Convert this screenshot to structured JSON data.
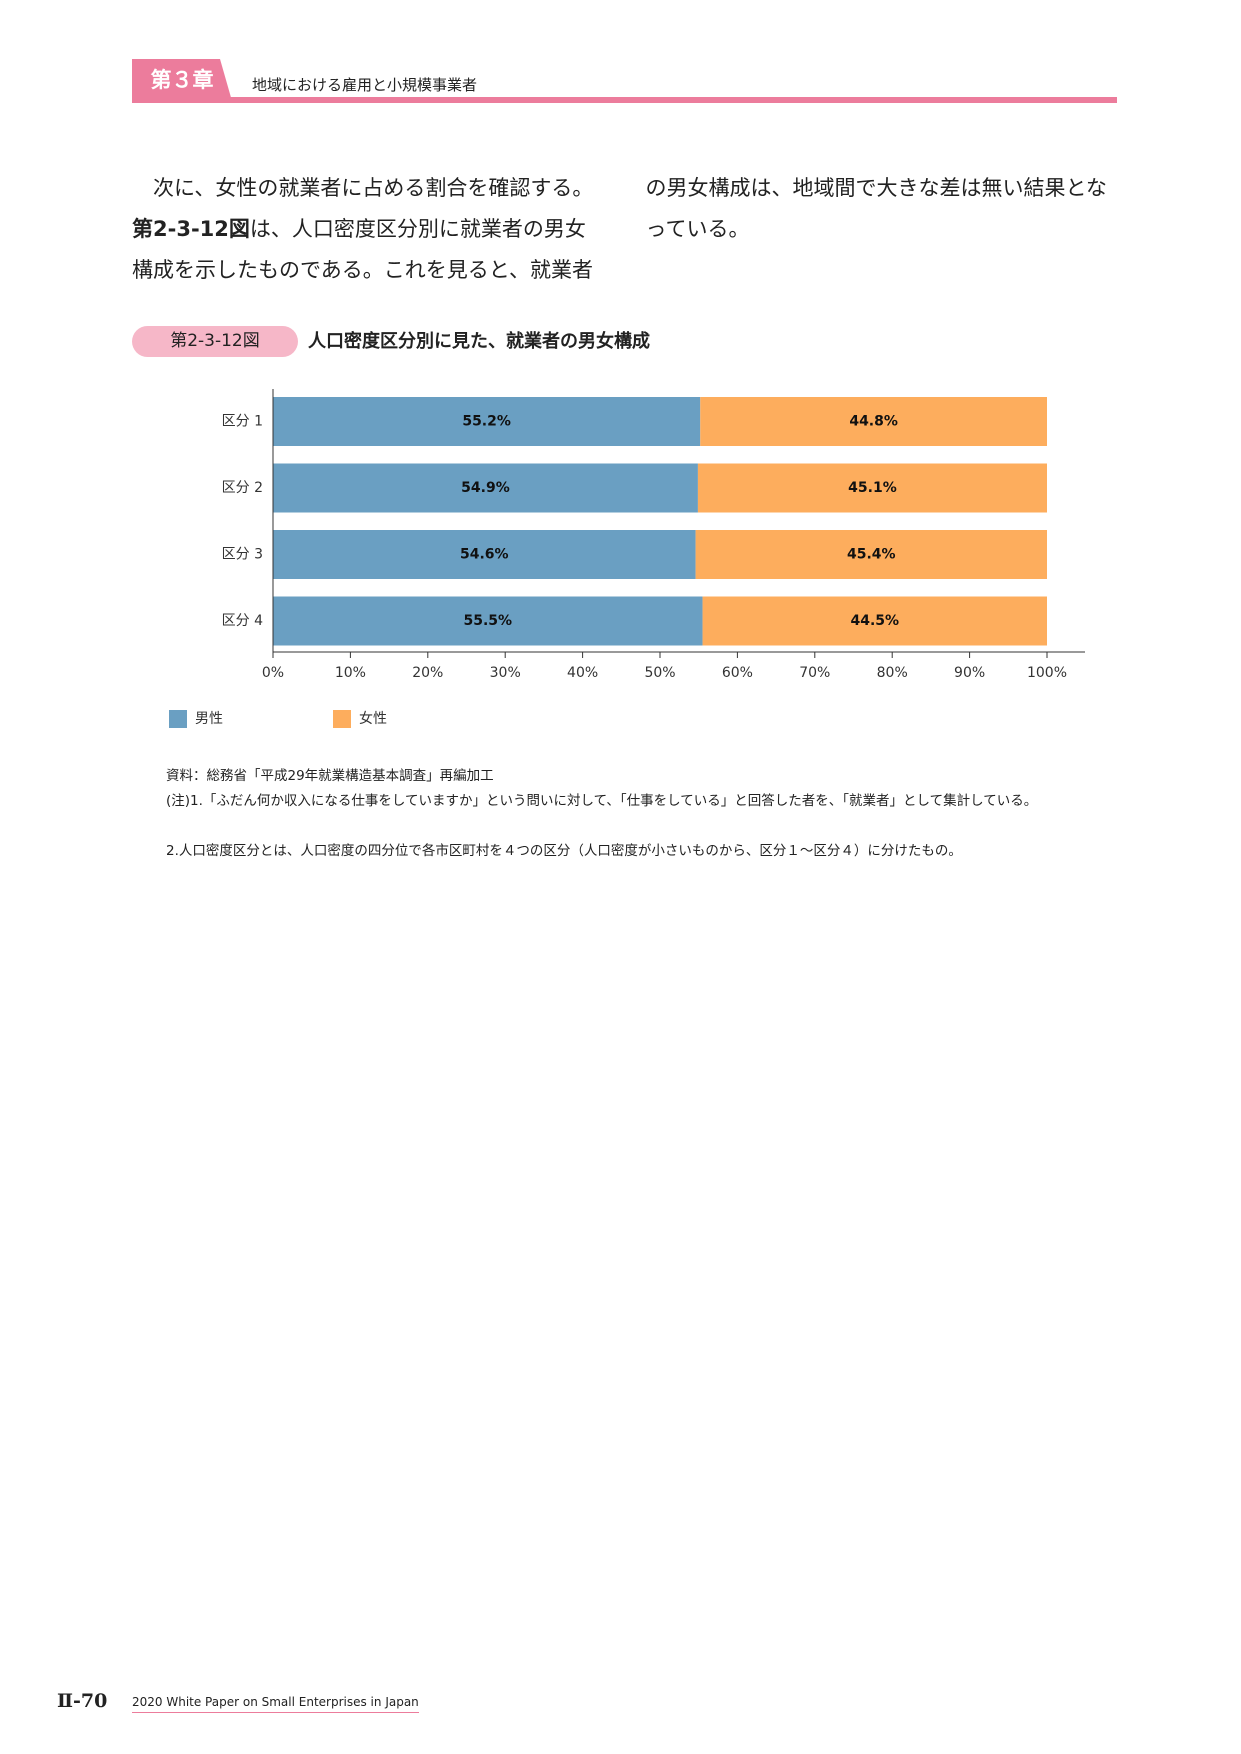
{
  "header": {
    "chapter": "第３章",
    "title": "地域における雇用と小規模事業者"
  },
  "body": {
    "text": [
      "次に、女性の就業者に占める割合を確認する。",
      "第2-3-12図",
      "は、人口密度区分別に就業者の男女構成を示したものである。これを見ると、就業者の男女構成は、地域間で大きな差は無い結果となっている。"
    ]
  },
  "figure": {
    "label": "第2-3-12図",
    "title": "人口密度区分別に見た、就業者の男女構成"
  },
  "chart_data": {
    "type": "stacked_bar_horizontal",
    "categories": [
      "区分 1",
      "区分 2",
      "区分 3",
      "区分 4"
    ],
    "series": [
      {
        "name": "男性",
        "color": "#6a9fc2",
        "values": [
          55.2,
          54.9,
          54.6,
          55.5
        ],
        "value_labels": [
          "55.2%",
          "54.9%",
          "54.6%",
          "55.5%"
        ]
      },
      {
        "name": "女性",
        "color": "#fdad5d",
        "values": [
          44.8,
          45.1,
          45.4,
          44.5
        ],
        "value_labels": [
          "44.8%",
          "45.1%",
          "45.4%",
          "44.5%"
        ]
      }
    ],
    "xlim": [
      0,
      100
    ],
    "xticks": [
      {
        "value": 0,
        "label": "0%"
      },
      {
        "value": 10,
        "label": "10%"
      },
      {
        "value": 20,
        "label": "20%"
      },
      {
        "value": 30,
        "label": "30%"
      },
      {
        "value": 40,
        "label": "40%"
      },
      {
        "value": 50,
        "label": "50%"
      },
      {
        "value": 60,
        "label": "60%"
      },
      {
        "value": 70,
        "label": "70%"
      },
      {
        "value": 80,
        "label": "80%"
      },
      {
        "value": 90,
        "label": "90%"
      },
      {
        "value": 100,
        "label": "100%"
      }
    ],
    "legend": "bottom-left"
  },
  "notes": [
    "資料：総務省「平成29年就業構造基本調査」再編加工",
    "(注)1.「ふだん何か収入になる仕事をしていますか」という問いに対して、「仕事をしている」と回答した者を、「就業者」として集計している。",
    "2.人口密度区分とは、人口密度の四分位で各市区町村を４つの区分（人口密度が小さいものから、区分１～区分４）に分けたもの。"
  ],
  "footer": {
    "page": "Ⅱ-70",
    "title": "2020 White Paper on Small Enterprises in Japan"
  }
}
